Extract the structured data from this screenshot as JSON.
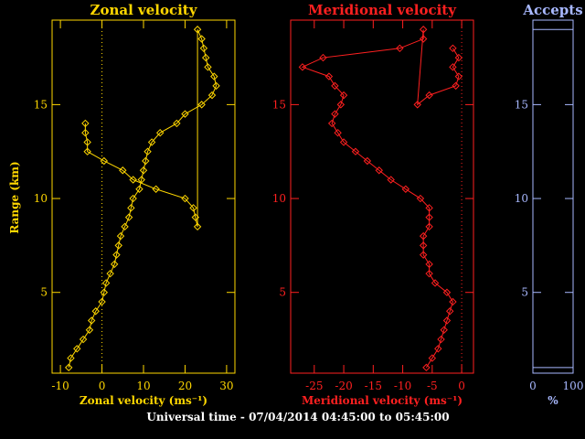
{
  "colors": {
    "zonal": "#ffd700",
    "meridional": "#ff2020",
    "accepts": "#a8b8ff",
    "text": "#ffffff",
    "background": "#000000"
  },
  "ylabel": "Range (km)",
  "footer": "Universal time - 07/04/2014 04:45:00 to 05:45:00",
  "chart_data": [
    {
      "type": "line",
      "title": "Zonal velocity",
      "xlabel": "Zonal velocity (ms⁻¹)",
      "ylabel": "Range (km)",
      "xlim": [
        -12,
        32
      ],
      "ylim": [
        0.7,
        19.5
      ],
      "xticks": [
        -10,
        0,
        10,
        20,
        30
      ],
      "yticks": [
        5,
        10,
        15
      ],
      "zero_line": 0,
      "series": [
        {
          "x": [
            -8,
            -7.5,
            -6,
            -4.5,
            -3,
            -2.5,
            -1.5,
            0,
            0.5,
            1,
            2,
            3,
            3.5,
            4,
            4.5,
            5.5,
            6.5,
            7,
            7.5,
            9,
            9.5,
            10,
            10.5,
            11,
            12,
            14,
            18,
            20,
            24,
            26.5,
            27.5,
            27,
            25.5,
            25,
            24.5,
            24,
            23,
            23,
            22.5,
            22,
            20,
            13,
            7.5,
            5,
            0.5,
            -3.5,
            -3.5,
            -4,
            -4
          ],
          "y": [
            1.0,
            1.5,
            2.0,
            2.5,
            3.0,
            3.5,
            4.0,
            4.5,
            5.0,
            5.5,
            6.0,
            6.5,
            7.0,
            7.5,
            8.0,
            8.5,
            9.0,
            9.5,
            10.0,
            10.5,
            11.0,
            11.5,
            12.0,
            12.5,
            13.0,
            13.5,
            14.0,
            14.5,
            15.0,
            15.5,
            16.0,
            16.5,
            17.0,
            17.5,
            18.0,
            18.5,
            19.0,
            8.5,
            9.0,
            9.5,
            10.0,
            10.5,
            11.0,
            11.5,
            12.0,
            12.5,
            13.0,
            13.5,
            14.0
          ]
        }
      ]
    },
    {
      "type": "line",
      "title": "Meridional velocity",
      "xlabel": "Meridional velocity (ms⁻¹)",
      "ylabel": "",
      "xlim": [
        -29,
        2
      ],
      "ylim": [
        0.7,
        19.5
      ],
      "xticks": [
        -25,
        -20,
        -15,
        -10,
        -5,
        0
      ],
      "yticks": [
        5,
        10,
        15
      ],
      "zero_line": 0,
      "series": [
        {
          "x": [
            -6,
            -5,
            -4,
            -3.5,
            -3,
            -2.5,
            -2,
            -1.5,
            -2.5,
            -4.5,
            -5.5,
            -5.5,
            -6.5,
            -6.5,
            -6.5,
            -5.5,
            -5.5,
            -5.5,
            -7,
            -9.5,
            -12,
            -14,
            -16,
            -18,
            -20,
            -21,
            -22,
            -21.5,
            -20.5,
            -20,
            -21.5,
            -22.5,
            -27,
            -23.5,
            -10.5,
            -6.5,
            -6.5,
            -7.5,
            -5.5,
            -1,
            -0.5,
            -1.5,
            -0.5,
            -1.5
          ],
          "y": [
            1.0,
            1.5,
            2.0,
            2.5,
            3.0,
            3.5,
            4.0,
            4.5,
            5.0,
            5.5,
            6.0,
            6.5,
            7.0,
            7.5,
            8.0,
            8.5,
            9.0,
            9.5,
            10.0,
            10.5,
            11.0,
            11.5,
            12.0,
            12.5,
            13.0,
            13.5,
            14.0,
            14.5,
            15.0,
            15.5,
            16.0,
            16.5,
            17.0,
            17.5,
            18.0,
            18.5,
            19.0,
            15.0,
            15.5,
            16.0,
            16.5,
            17.0,
            17.5,
            18.0
          ]
        }
      ]
    },
    {
      "type": "area",
      "title": "Accepts",
      "xlabel": "%",
      "ylabel": "",
      "xlim": [
        0,
        100
      ],
      "ylim": [
        0.7,
        19.5
      ],
      "xticks": [
        0,
        100
      ],
      "yticks": [
        5,
        10,
        15
      ],
      "series": [
        {
          "x": [
            100,
            100
          ],
          "y": [
            1.0,
            19.0
          ]
        }
      ]
    }
  ]
}
